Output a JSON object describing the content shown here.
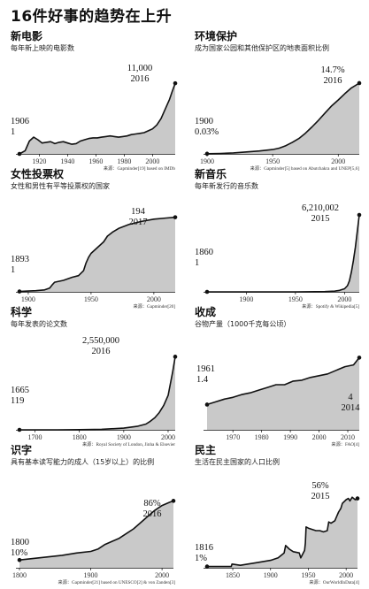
{
  "page_title": "16件好事的趋势在上升",
  "chart_data": [
    {
      "type": "area",
      "title": "新电影",
      "subtitle": "每年新上映的电影数",
      "source": "来源：Gapminder[19] based on IMDb",
      "xlim": [
        1906,
        2016
      ],
      "ylim": [
        0,
        13500
      ],
      "xticks": [
        1920,
        1940,
        1960,
        1980,
        2000
      ],
      "start": {
        "year": "1906",
        "value": "1"
      },
      "end": {
        "year": "2016",
        "value": "11,000"
      },
      "x": [
        1906,
        1910,
        1913,
        1916,
        1919,
        1922,
        1925,
        1928,
        1931,
        1934,
        1937,
        1940,
        1943,
        1946,
        1949,
        1952,
        1955,
        1958,
        1961,
        1964,
        1967,
        1970,
        1973,
        1976,
        1979,
        1982,
        1985,
        1988,
        1991,
        1994,
        1997,
        2000,
        2003,
        2006,
        2008,
        2010,
        2012,
        2014,
        2016
      ],
      "y": [
        1,
        500,
        2000,
        2600,
        2200,
        1700,
        1800,
        1900,
        1600,
        1800,
        1900,
        1700,
        1500,
        1600,
        2000,
        2200,
        2400,
        2500,
        2500,
        2600,
        2700,
        2800,
        2700,
        2600,
        2700,
        2800,
        3000,
        3100,
        3200,
        3300,
        3600,
        3900,
        4500,
        5500,
        6500,
        7500,
        8500,
        9800,
        11000
      ]
    },
    {
      "type": "area",
      "title": "环境保护",
      "subtitle": "成为国家公园和其他保护区的地表面积比例",
      "source": "来源：Gapminder[5] based on Abutchakra and UNEP[5,6]",
      "xlim": [
        1900,
        2016
      ],
      "ylim": [
        0,
        18
      ],
      "xticks": [
        1900,
        1950,
        2000
      ],
      "start": {
        "year": "1900",
        "value": "0.03%"
      },
      "end": {
        "year": "2016",
        "value": "14.7%"
      },
      "x": [
        1900,
        1910,
        1920,
        1930,
        1940,
        1950,
        1955,
        1960,
        1965,
        1970,
        1975,
        1980,
        1985,
        1990,
        1995,
        2000,
        2005,
        2010,
        2016
      ],
      "y": [
        0.03,
        0.1,
        0.2,
        0.4,
        0.6,
        0.9,
        1.2,
        1.7,
        2.4,
        3.2,
        4.3,
        5.6,
        7.0,
        8.5,
        10.0,
        11.2,
        12.5,
        13.7,
        14.7
      ]
    },
    {
      "type": "area",
      "title": "女性投票权",
      "subtitle": "女性和男性有平等投票权的国家",
      "source": "来源：Gapminder[20]",
      "xlim": [
        1893,
        2017
      ],
      "ylim": [
        0,
        230
      ],
      "xticks": [
        1900,
        1950,
        2000
      ],
      "start": {
        "year": "1893",
        "value": "1"
      },
      "end": {
        "year": "2017",
        "value": "194"
      },
      "x": [
        1893,
        1900,
        1906,
        1913,
        1917,
        1919,
        1921,
        1928,
        1935,
        1940,
        1944,
        1946,
        1948,
        1950,
        1955,
        1960,
        1963,
        1967,
        1972,
        1980,
        1990,
        2000,
        2010,
        2017
      ],
      "y": [
        1,
        2,
        3,
        5,
        10,
        18,
        25,
        30,
        38,
        42,
        55,
        75,
        90,
        100,
        115,
        130,
        145,
        155,
        165,
        175,
        183,
        189,
        192,
        194
      ]
    },
    {
      "type": "area",
      "title": "新音乐",
      "subtitle": "每年新发行的音乐数",
      "source": "来源：Spotify & Wikipedia[5]",
      "xlim": [
        1860,
        2015
      ],
      "ylim": [
        0,
        7000000
      ],
      "xticks": [
        1900,
        1950,
        2000
      ],
      "start": {
        "year": "1860",
        "value": "1"
      },
      "end": {
        "year": "2015",
        "value": "6,210,002"
      },
      "x": [
        1860,
        1900,
        1950,
        1980,
        1990,
        1995,
        2000,
        2003,
        2005,
        2007,
        2009,
        2011,
        2013,
        2015
      ],
      "y": [
        1,
        200,
        3000,
        20000,
        60000,
        120000,
        250000,
        500000,
        900000,
        1600000,
        2500000,
        3600000,
        4900000,
        6210002
      ]
    },
    {
      "type": "area",
      "title": "科学",
      "subtitle": "每年发表的论文数",
      "source": "来源：Royal Society of London, Jinha & Elsevier",
      "xlim": [
        1665,
        2016
      ],
      "ylim": [
        0,
        2900000
      ],
      "xticks": [
        1700,
        1800,
        1900,
        2000
      ],
      "start": {
        "year": "1665",
        "value": "119"
      },
      "end": {
        "year": "2016",
        "value": "2,550,000"
      },
      "x": [
        1665,
        1750,
        1800,
        1850,
        1900,
        1930,
        1950,
        1960,
        1970,
        1980,
        1990,
        2000,
        2005,
        2010,
        2016
      ],
      "y": [
        119,
        1000,
        5000,
        20000,
        60000,
        120000,
        200000,
        300000,
        420000,
        600000,
        850000,
        1200000,
        1600000,
        2000000,
        2550000
      ]
    },
    {
      "type": "area",
      "title": "收成",
      "subtitle": "谷物产量（1000千克每公顷）",
      "source": "来源：FAO[4]",
      "xlim": [
        1961,
        2014
      ],
      "ylim": [
        0,
        5
      ],
      "xticks": [
        1970,
        1980,
        1990,
        2000,
        2010
      ],
      "start": {
        "year": "1961",
        "value": "1.4"
      },
      "end": {
        "year": "2014",
        "value": "4"
      },
      "x": [
        1961,
        1964,
        1967,
        1970,
        1973,
        1976,
        1979,
        1982,
        1985,
        1988,
        1991,
        1994,
        1997,
        2000,
        2003,
        2006,
        2009,
        2012,
        2014
      ],
      "y": [
        1.4,
        1.55,
        1.7,
        1.8,
        1.95,
        2.05,
        2.2,
        2.35,
        2.5,
        2.5,
        2.7,
        2.75,
        2.9,
        3.0,
        3.1,
        3.3,
        3.5,
        3.6,
        4.0
      ]
    },
    {
      "type": "area",
      "title": "识字",
      "subtitle": "具有基本读写能力的成人（15岁以上）的比例",
      "source": "来源：Gapminder[21] based on UNESCO[2] & von Zanden[3]",
      "xlim": [
        1800,
        2016
      ],
      "ylim": [
        0,
        100
      ],
      "xticks": [
        1800,
        1900,
        2000
      ],
      "start": {
        "year": "1800",
        "value": "10%"
      },
      "end": {
        "year": "2016",
        "value": "86%"
      },
      "x": [
        1800,
        1820,
        1840,
        1860,
        1880,
        1900,
        1910,
        1920,
        1930,
        1940,
        1950,
        1960,
        1970,
        1980,
        1990,
        2000,
        2010,
        2016
      ],
      "y": [
        10,
        12,
        14,
        16,
        19,
        21,
        24,
        30,
        34,
        38,
        44,
        50,
        58,
        66,
        74,
        80,
        84,
        86
      ]
    },
    {
      "type": "area",
      "title": "民主",
      "subtitle": "生活在民主国家的人口比例",
      "source": "来源：OurWorldInData[4]",
      "xlim": [
        1816,
        2015
      ],
      "ylim": [
        0,
        70
      ],
      "xticks": [
        1850,
        1900,
        1950,
        2000
      ],
      "start": {
        "year": "1816",
        "value": "1%"
      },
      "end": {
        "year": "2015",
        "value": "56%"
      },
      "x": [
        1816,
        1848,
        1849,
        1860,
        1880,
        1900,
        1910,
        1918,
        1920,
        1925,
        1930,
        1938,
        1940,
        1945,
        1946,
        1947,
        1950,
        1955,
        1960,
        1965,
        1970,
        1975,
        1977,
        1980,
        1985,
        1990,
        1993,
        1995,
        2000,
        2003,
        2005,
        2008,
        2010,
        2012,
        2015
      ],
      "y": [
        1,
        1,
        3,
        2,
        4,
        6,
        8,
        12,
        18,
        15,
        13,
        12,
        8,
        14,
        20,
        33,
        32,
        31,
        30,
        30,
        29,
        30,
        37,
        36,
        38,
        45,
        48,
        52,
        55,
        56,
        54,
        57,
        56,
        55,
        56
      ]
    }
  ]
}
